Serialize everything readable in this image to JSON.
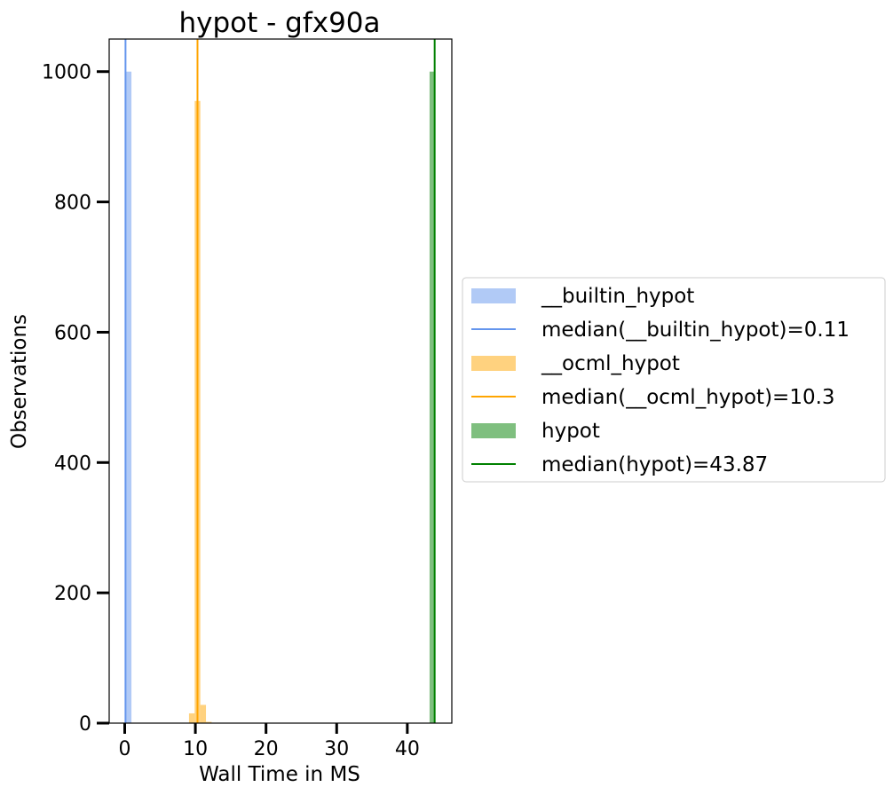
{
  "chart_data": {
    "type": "histogram",
    "title": "hypot - gfx90a",
    "xlabel": "Wall Time in MS",
    "ylabel": "Observations",
    "xlim": [
      -2.2,
      46.3
    ],
    "ylim": [
      0,
      1050
    ],
    "xticks": [
      0,
      10,
      20,
      30,
      40
    ],
    "yticks": [
      0,
      200,
      400,
      600,
      800,
      1000
    ],
    "grid": false,
    "legend_position": "outside-right",
    "series": [
      {
        "name": "__builtin_hypot",
        "color": "#6495ed",
        "bars": [
          {
            "x0": 0.11,
            "x1": 0.95,
            "count": 1000
          }
        ],
        "median": 0.11,
        "median_label": "median(__builtin_hypot)=0.11"
      },
      {
        "name": "__ocml_hypot",
        "color": "#ffa500",
        "bars": [
          {
            "x0": 9.1,
            "x1": 9.9,
            "count": 15
          },
          {
            "x0": 9.9,
            "x1": 10.7,
            "count": 955
          },
          {
            "x0": 10.7,
            "x1": 11.5,
            "count": 28
          },
          {
            "x0": 11.5,
            "x1": 12.3,
            "count": 2
          }
        ],
        "median": 10.3,
        "median_label": "median(__ocml_hypot)=10.3"
      },
      {
        "name": "hypot",
        "color": "#008000",
        "bars": [
          {
            "x0": 43.15,
            "x1": 43.87,
            "count": 1000
          }
        ],
        "median": 43.87,
        "median_label": "median(hypot)=43.87"
      }
    ]
  }
}
